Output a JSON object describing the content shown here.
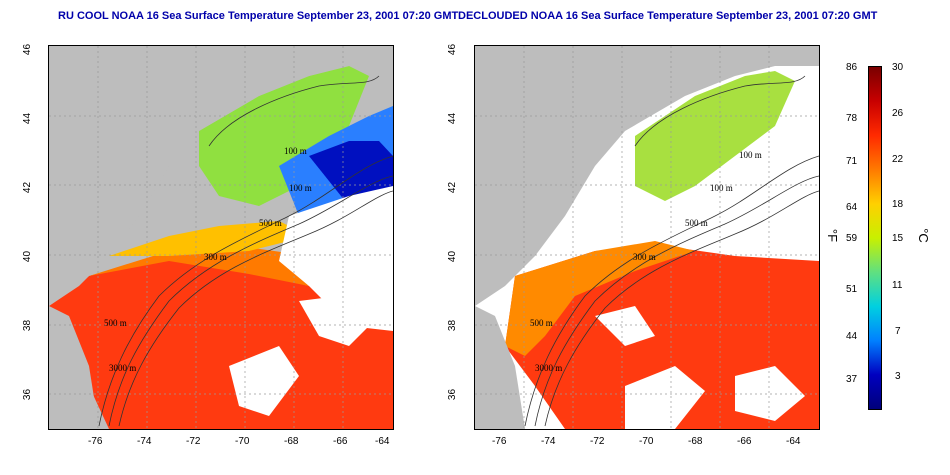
{
  "left_panel": {
    "title": "RU COOL NOAA 16 Sea Surface Temperature September 23, 2001 07:20 GMT",
    "contour_labels": [
      "100 m",
      "100 m",
      "500 m",
      "300 m",
      "500 m",
      "3000 m"
    ]
  },
  "right_panel": {
    "title": "DECLOUDED NOAA 16 Sea Surface Temperature September 23, 2001 07:20 GMT",
    "contour_labels": [
      "100 m",
      "100 m",
      "500 m",
      "300 m",
      "500 m",
      "3000 m"
    ]
  },
  "axes": {
    "lat_ticks": [
      "46",
      "44",
      "42",
      "40",
      "38",
      "36"
    ],
    "lon_ticks": [
      "-76",
      "-74",
      "-72",
      "-70",
      "-68",
      "-66",
      "-64"
    ]
  },
  "colorbar": {
    "fahrenheit_ticks": [
      "86",
      "78",
      "71",
      "64",
      "59",
      "51",
      "44",
      "37"
    ],
    "celsius_ticks": [
      "30",
      "26",
      "22",
      "18",
      "15",
      "11",
      "7",
      "3"
    ],
    "fahrenheit_unit": "°F",
    "celsius_unit": "°C",
    "colors": [
      "#7a0000",
      "#c80000",
      "#ff2a00",
      "#ff7a00",
      "#ffd000",
      "#c8f000",
      "#60e080",
      "#00d0e0",
      "#0080ff",
      "#0000c0",
      "#00007a"
    ]
  },
  "colors": {
    "land": "#bdbdbd",
    "cloud": "#ffffff",
    "title": "#0000aa"
  }
}
